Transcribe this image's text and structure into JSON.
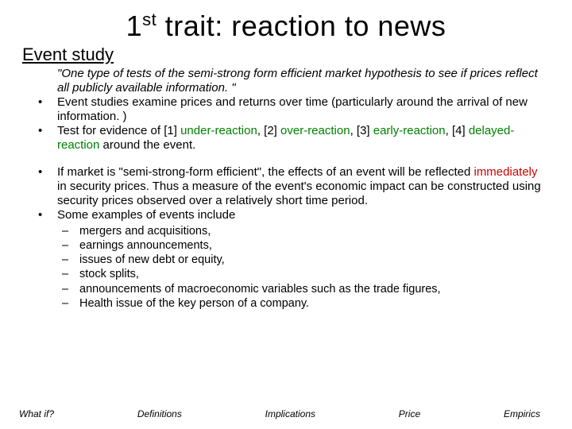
{
  "title_prefix": "1",
  "title_sup": "st",
  "title_rest": " trait: reaction to news",
  "subtitle": "Event study",
  "quote": "\"One type of tests of the semi-strong form efficient market hypothesis to see if prices reflect all publicly available information. \"",
  "b1": "Event studies examine prices and returns over time (particularly around the arrival of new information. )",
  "b2_a": "Test for evidence of [1] ",
  "b2_under": "under-reaction",
  "b2_b": ", [2] ",
  "b2_over": "over-reaction",
  "b2_c": ", [3] ",
  "b2_early": "early-reaction",
  "b2_d": ", [4] ",
  "b2_delayed": "delayed-reaction",
  "b2_e": " around the event.",
  "b3_a": "If market is \"semi-strong-form efficient\", the effects of an event will be reflected ",
  "b3_imm": "immediately",
  "b3_b": " in security prices. Thus a measure of the event's economic impact can be constructed using security prices observed over a relatively short time period.",
  "b4": "Some examples of events include",
  "s1": "mergers and acquisitions,",
  "s2": "earnings announcements,",
  "s3": "issues of new debt or equity,",
  "s4": "stock splits,",
  "s5": "announcements of macroeconomic variables such as the trade figures,",
  "s6": "Health issue of the key person of a company.",
  "f1": "What if?",
  "f2": "Definitions",
  "f3": "Implications",
  "f4": "Price",
  "f5": "Empirics",
  "colors": {
    "green": "#008000",
    "red": "#cc0000",
    "text": "#000000",
    "bg": "#ffffff"
  }
}
